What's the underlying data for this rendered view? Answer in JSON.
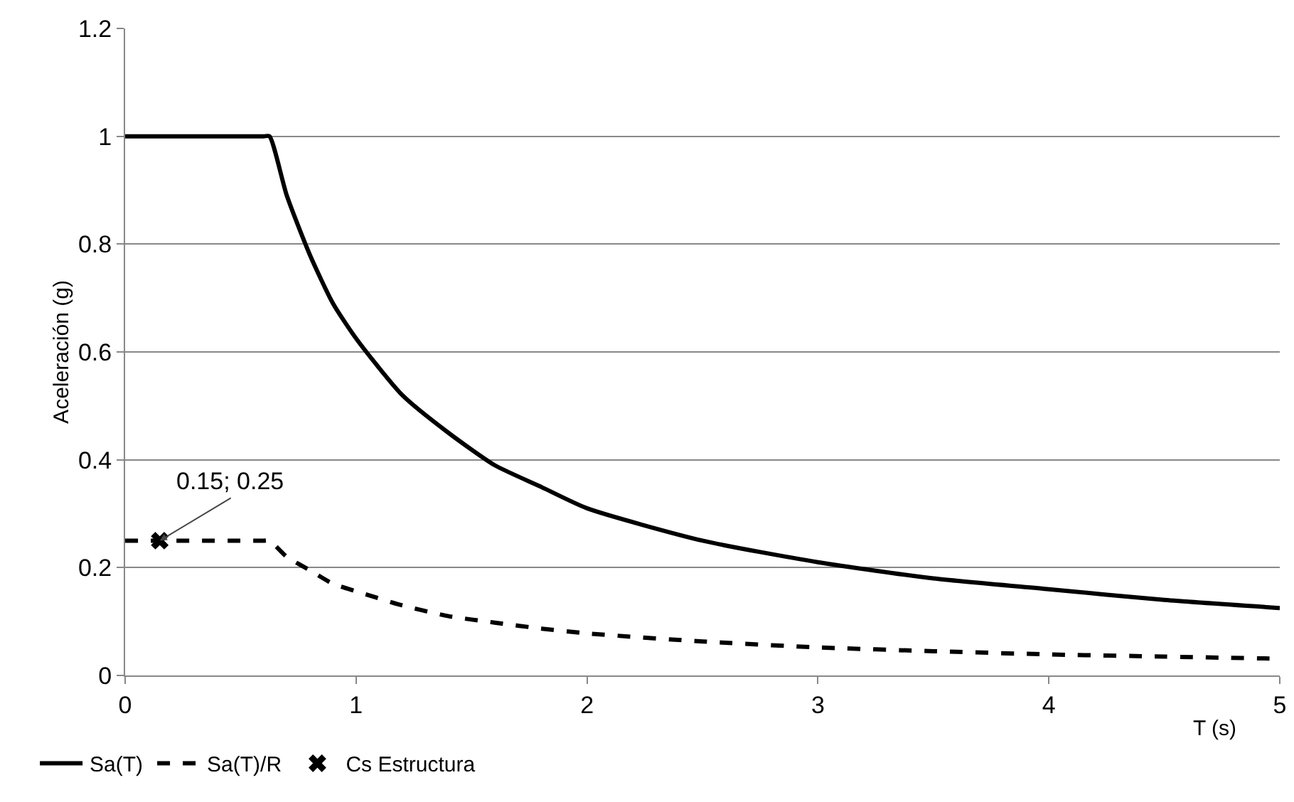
{
  "chart_data": {
    "type": "line",
    "xlabel": "T (s)",
    "ylabel": "Aceleración (g)",
    "x": [
      0,
      0.6,
      0.625,
      0.7,
      0.8,
      0.9,
      1,
      1.2,
      1.4,
      1.6,
      1.8,
      2,
      2.5,
      3,
      3.5,
      4,
      4.5,
      5
    ],
    "series": [
      {
        "name": "Sa(T)",
        "color": "#000000",
        "line_style": "solid",
        "values": [
          1,
          1,
          1,
          0.89,
          0.78,
          0.69,
          0.625,
          0.52,
          0.45,
          0.39,
          0.35,
          0.31,
          0.25,
          0.21,
          0.18,
          0.16,
          0.14,
          0.125
        ]
      },
      {
        "name": "Sa(T)/R",
        "color": "#000000",
        "line_style": "dashed",
        "values": [
          0.25,
          0.25,
          0.25,
          0.22,
          0.195,
          0.17,
          0.156,
          0.13,
          0.11,
          0.098,
          0.087,
          0.078,
          0.063,
          0.052,
          0.045,
          0.039,
          0.035,
          0.031
        ]
      },
      {
        "name": "Cs Estructura",
        "type": "scatter",
        "marker": "cross",
        "color": "#000000",
        "x": [
          0.15
        ],
        "values": [
          0.25
        ]
      }
    ],
    "annotations": [
      {
        "text": "0.15; 0.25",
        "x": 0.15,
        "y": 0.25
      }
    ],
    "xlim": [
      0,
      5
    ],
    "xticks": [
      0,
      1,
      2,
      3,
      4,
      5
    ],
    "ylim": [
      0,
      1.2
    ],
    "yticks": [
      0,
      0.2,
      0.4,
      0.6,
      0.8,
      1,
      1.2
    ],
    "grid": "y",
    "legend": "bottom"
  }
}
